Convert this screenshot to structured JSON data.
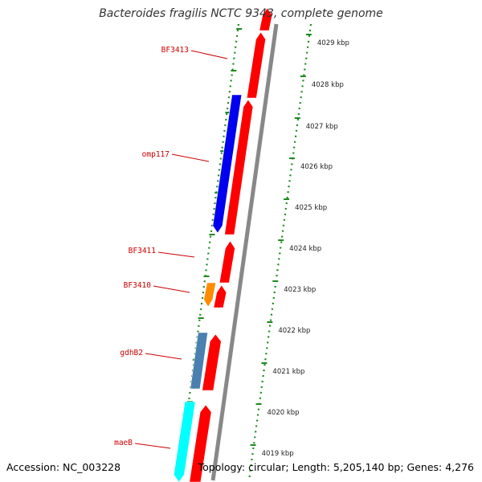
{
  "title": "Bacteroides fragilis NCTC 9343, complete genome",
  "footer": {
    "accession": "Accession: NC_003228",
    "topology": "Topology: circular; Length: 5,205,140 bp; Genes: 4,276"
  },
  "colors": {
    "forward_cds": "#ff0000",
    "reverse_cds_blue": "#0000ee",
    "reverse_cds_orange": "#ff8c00",
    "reverse_cds_steel": "#4a7fb0",
    "reverse_cds_cyan": "#00ffff",
    "backbone": "#888888",
    "tick_green": "#1f8a1f",
    "label_red": "#cc0000"
  },
  "scale": {
    "unit": "kbp",
    "labels": [
      "4029 kbp",
      "4028 kbp",
      "4027 kbp",
      "4026 kbp",
      "4025 kbp",
      "4024 kbp",
      "4023 kbp",
      "4022 kbp",
      "4021 kbp",
      "4020 kbp",
      "4019 kbp"
    ]
  },
  "gene_labels": [
    {
      "name": "BF3413"
    },
    {
      "name": "omp117"
    },
    {
      "name": "BF3411"
    },
    {
      "name": "BF3410"
    },
    {
      "name": "gdhB2"
    },
    {
      "name": "maeB"
    }
  ]
}
